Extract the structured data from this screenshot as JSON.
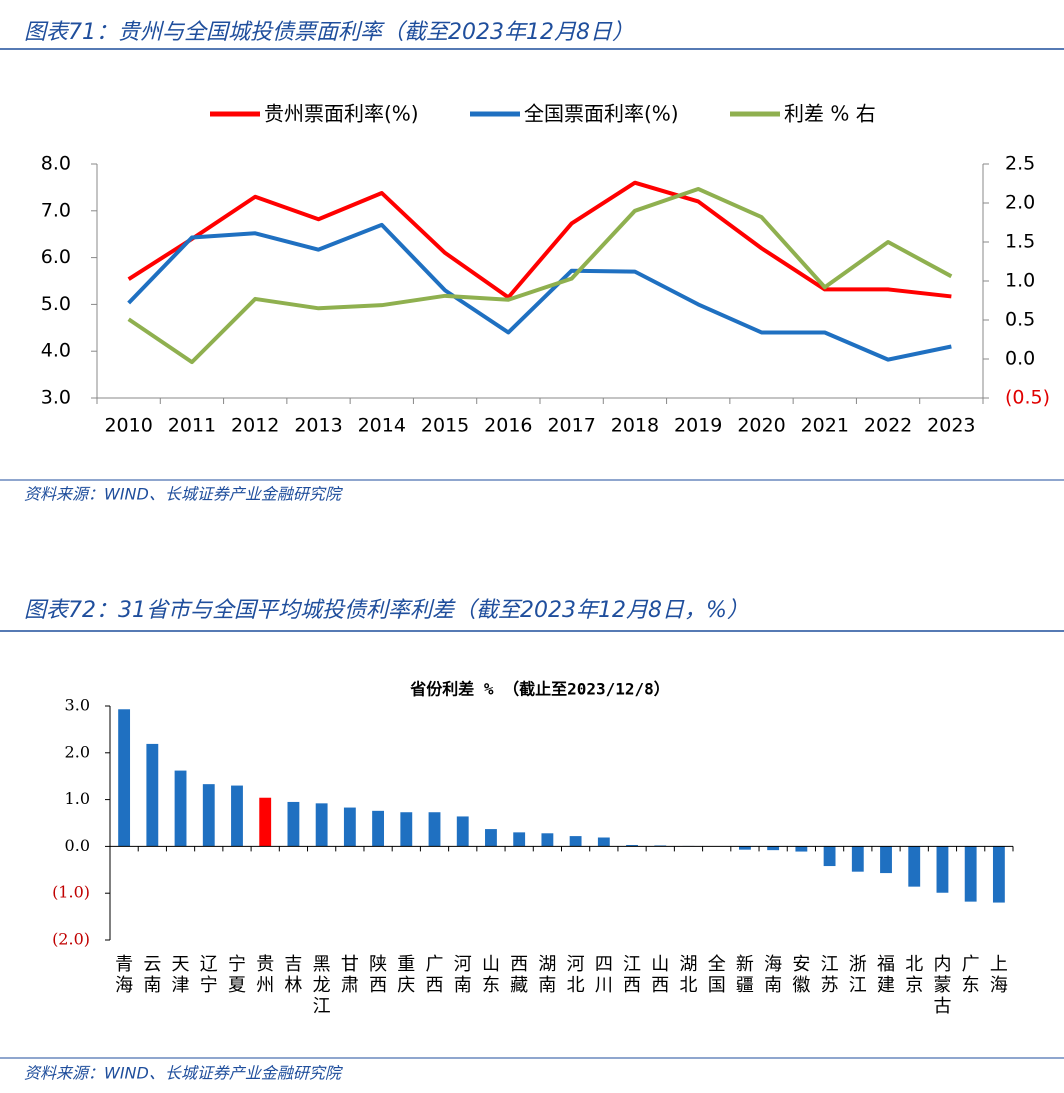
{
  "chart_data": [
    {
      "type": "line",
      "caption": "图表71：贵州与全国城投债票面利率（截至2023年12月8日）",
      "source": "资料来源：WIND、长城证券产业金融研究院",
      "categories": [
        "2010",
        "2011",
        "2012",
        "2013",
        "2014",
        "2015",
        "2016",
        "2017",
        "2018",
        "2019",
        "2020",
        "2021",
        "2022",
        "2023"
      ],
      "series": [
        {
          "name": "贵州票面利率(%)",
          "color": "#ff0000",
          "values": [
            5.54,
            6.4,
            7.3,
            6.82,
            7.38,
            6.1,
            5.15,
            6.73,
            7.6,
            7.2,
            6.2,
            5.32,
            5.32,
            5.17
          ]
        },
        {
          "name": "全国票面利率(%)",
          "color": "#1f70c1",
          "values": [
            5.03,
            6.43,
            6.52,
            6.17,
            6.7,
            5.3,
            4.4,
            5.72,
            5.7,
            5.0,
            4.4,
            4.4,
            3.82,
            4.1
          ]
        },
        {
          "name": "利差 % 右",
          "color": "#8fb04f",
          "axis": "y2",
          "values": [
            0.51,
            -0.04,
            0.77,
            0.65,
            0.69,
            0.81,
            0.76,
            1.03,
            1.9,
            2.18,
            1.82,
            0.92,
            1.5,
            1.06
          ]
        }
      ],
      "ylim": [
        3,
        8
      ],
      "yticks": [
        {
          "value": 3,
          "label": "3.0"
        },
        {
          "value": 4,
          "label": "4.0"
        },
        {
          "value": 5,
          "label": "5.0"
        },
        {
          "value": 6,
          "label": "6.0"
        },
        {
          "value": 7,
          "label": "7.0"
        },
        {
          "value": 8,
          "label": "8.0"
        }
      ],
      "y2lim": [
        -0.5,
        2.5
      ],
      "y2ticks": [
        {
          "value": -0.5,
          "label": "(0.5)"
        },
        {
          "value": 0,
          "label": "0.0"
        },
        {
          "value": 0.5,
          "label": "0.5"
        },
        {
          "value": 1,
          "label": "1.0"
        },
        {
          "value": 1.5,
          "label": "1.5"
        },
        {
          "value": 2,
          "label": "2.0"
        },
        {
          "value": 2.5,
          "label": "2.5"
        }
      ],
      "legend": "top",
      "grid": false
    },
    {
      "type": "bar",
      "caption": "图表72：31省市与全国平均城投债利率利差（截至2023年12月8日，%）",
      "title": "省份利差 % （截止至2023/12/8）",
      "source": "资料来源：WIND、长城证券产业金融研究院",
      "categories": [
        "青海",
        "云南",
        "天津",
        "辽宁",
        "宁夏",
        "贵州",
        "吉林",
        "黑龙江",
        "甘肃",
        "陕西",
        "重庆",
        "广西",
        "河南",
        "山东",
        "西藏",
        "湖南",
        "河北",
        "四川",
        "江西",
        "山西",
        "湖北",
        "全国",
        "新疆",
        "海南",
        "安徽",
        "江苏",
        "浙江",
        "福建",
        "北京",
        "内蒙古",
        "广东",
        "上海"
      ],
      "values": [
        2.93,
        2.19,
        1.62,
        1.33,
        1.3,
        1.04,
        0.95,
        0.92,
        0.83,
        0.76,
        0.73,
        0.73,
        0.64,
        0.37,
        0.3,
        0.28,
        0.22,
        0.19,
        0.03,
        0.02,
        0.01,
        0,
        -0.07,
        -0.08,
        -0.11,
        -0.42,
        -0.54,
        -0.57,
        -0.86,
        -0.99,
        -1.18,
        -1.2
      ],
      "colors": [
        "#1f70c1",
        "#1f70c1",
        "#1f70c1",
        "#1f70c1",
        "#1f70c1",
        "#ff0000",
        "#1f70c1",
        "#1f70c1",
        "#1f70c1",
        "#1f70c1",
        "#1f70c1",
        "#1f70c1",
        "#1f70c1",
        "#1f70c1",
        "#1f70c1",
        "#1f70c1",
        "#1f70c1",
        "#1f70c1",
        "#1f70c1",
        "#1f70c1",
        "#1f70c1",
        "#1f70c1",
        "#1f70c1",
        "#1f70c1",
        "#1f70c1",
        "#1f70c1",
        "#1f70c1",
        "#1f70c1",
        "#1f70c1",
        "#1f70c1",
        "#1f70c1",
        "#1f70c1"
      ],
      "ylim": [
        -2,
        3
      ],
      "yticks": [
        {
          "value": 3,
          "label": "3.0"
        },
        {
          "value": 2,
          "label": "2.0"
        },
        {
          "value": 1,
          "label": "1.0"
        },
        {
          "value": 0,
          "label": "0.0"
        },
        {
          "value": -1,
          "label": "(1.0)"
        },
        {
          "value": -2,
          "label": "(2.0)"
        }
      ],
      "grid": false
    }
  ]
}
